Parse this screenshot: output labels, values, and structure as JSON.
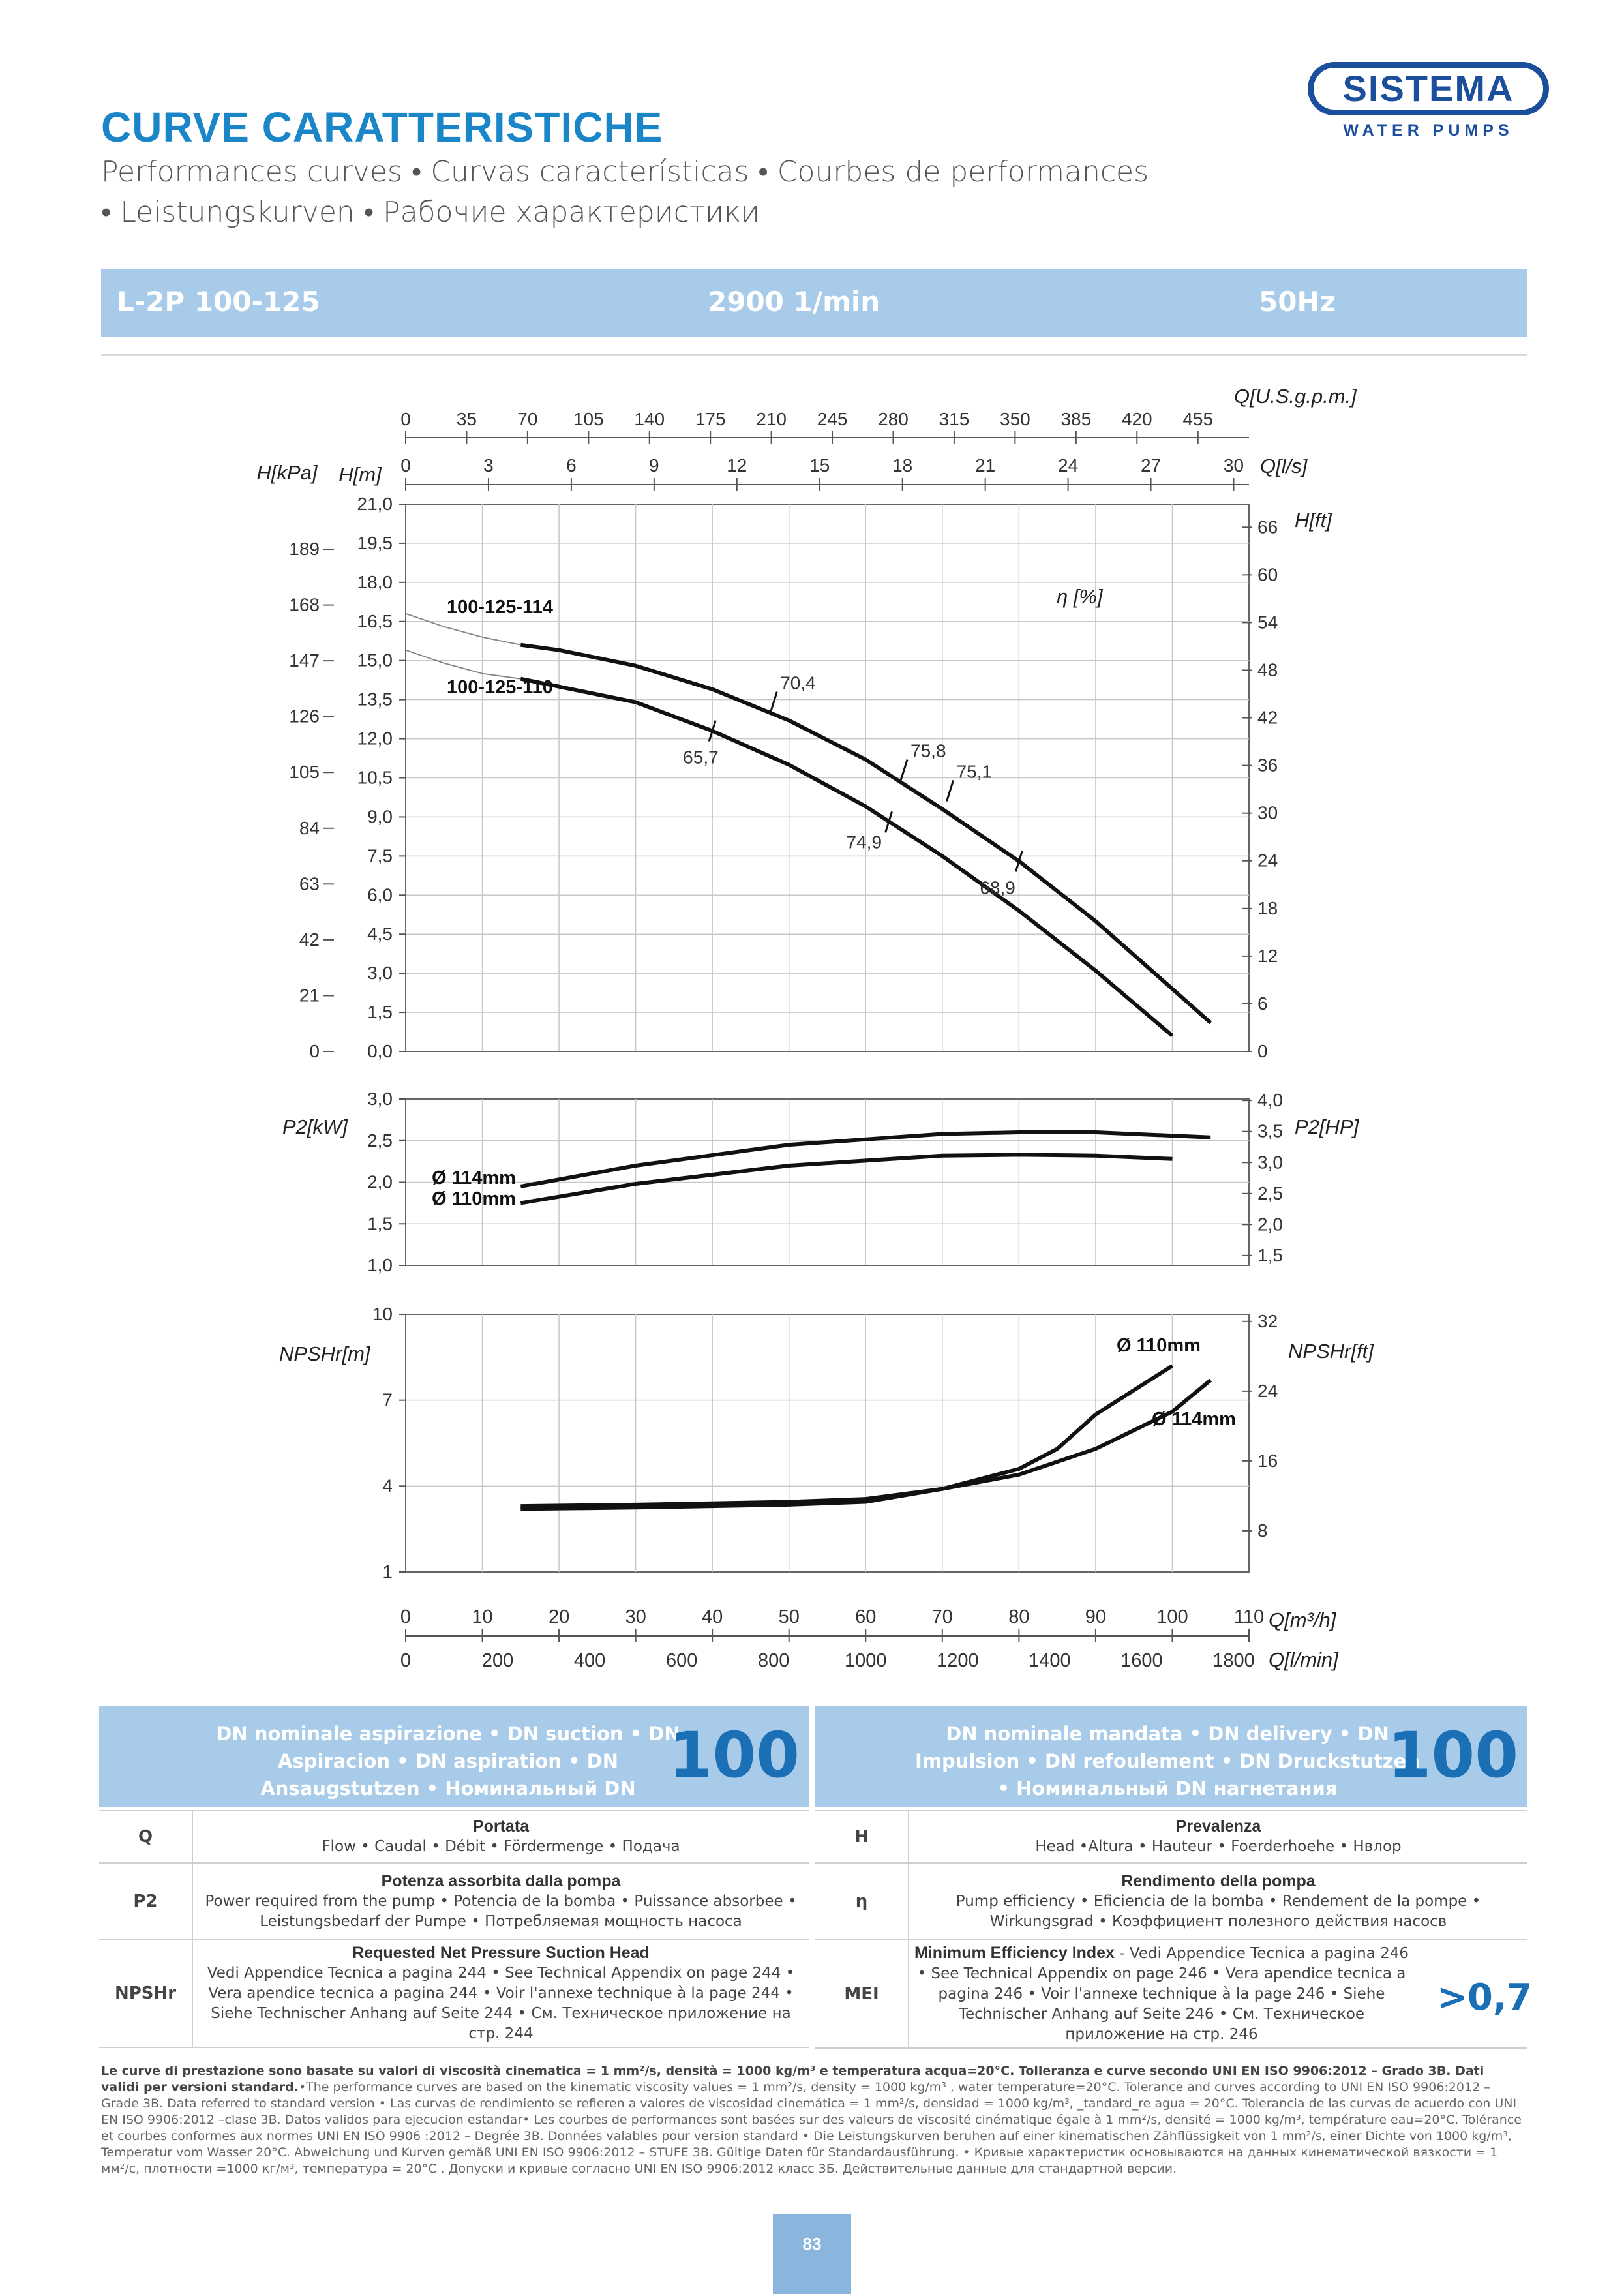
{
  "header": {
    "title": "CURVE CARATTERISTICHE",
    "subtitle_line1": "Performances curves • Curvas características • Courbes de performances",
    "subtitle_line2": "• Leistungskurven • Рабочие характеристики",
    "logo_text": "SISTEMA",
    "logo_sub": "WATER PUMPS"
  },
  "band": {
    "model": "L-2P 100-125",
    "speed": "2900 1/min",
    "frequency": "50Hz"
  },
  "chart_data": [
    {
      "type": "line",
      "title": "",
      "top_axis_labels": {
        "usgpm": "Q[U.S.g.p.m.]",
        "ls": "Q[l/s]"
      },
      "usgpm_ticks": [
        "0",
        "35",
        "70",
        "105",
        "140",
        "175",
        "210",
        "245",
        "280",
        "315",
        "350",
        "385",
        "420",
        "455"
      ],
      "ls_ticks": [
        "0",
        "3",
        "6",
        "9",
        "12",
        "15",
        "18",
        "21",
        "24",
        "27",
        "30"
      ],
      "ylabel_left_kpa": "H[kPa]",
      "ylabel_left_m": "H[m]",
      "ylabel_right": "H[ft]",
      "kpa_ticks": [
        "0",
        "21",
        "42",
        "63",
        "84",
        "105",
        "126",
        "147",
        "168",
        "189"
      ],
      "m_ticks": [
        "0,0",
        "1,5",
        "3,0",
        "4,5",
        "6,0",
        "7,5",
        "9,0",
        "10,5",
        "12,0",
        "13,5",
        "15,0",
        "16,5",
        "18,0",
        "19,5",
        "21,0"
      ],
      "ft_ticks": [
        "0",
        "6",
        "12",
        "18",
        "24",
        "30",
        "36",
        "42",
        "48",
        "54",
        "60",
        "66"
      ],
      "eta_label": "η [%]",
      "ylim": [
        0,
        21
      ],
      "xlim": [
        0,
        110
      ],
      "series": [
        {
          "name": "100-125-114",
          "x": [
            0,
            5,
            10,
            15,
            20,
            30,
            40,
            50,
            60,
            70,
            80,
            90,
            100,
            105
          ],
          "y": [
            16.8,
            16.3,
            15.9,
            15.6,
            15.4,
            14.8,
            13.9,
            12.7,
            11.2,
            9.3,
            7.3,
            5.0,
            2.4,
            1.1
          ],
          "solid_from_x": 15
        },
        {
          "name": "100-125-110",
          "x": [
            0,
            5,
            10,
            15,
            20,
            30,
            40,
            50,
            60,
            70,
            80,
            90,
            100
          ],
          "y": [
            15.4,
            14.9,
            14.5,
            14.3,
            14.0,
            13.4,
            12.3,
            11.0,
            9.4,
            7.5,
            5.4,
            3.1,
            0.6
          ],
          "solid_from_x": 15
        }
      ],
      "efficiency_marks": [
        {
          "label": "65,7",
          "x": 40,
          "y": 12.3
        },
        {
          "label": "70,4",
          "x": 48,
          "y": 13.4
        },
        {
          "label": "74,9",
          "x": 63,
          "y": 8.8
        },
        {
          "label": "75,8",
          "x": 65,
          "y": 10.8
        },
        {
          "label": "75,1",
          "x": 71,
          "y": 10.0
        },
        {
          "label": "68,9",
          "x": 80,
          "y": 7.3
        }
      ]
    },
    {
      "type": "line",
      "ylabel_left": "P2[kW]",
      "ylabel_right": "P2[HP]",
      "kw_ticks": [
        "1,0",
        "1,5",
        "2,0",
        "2,5",
        "3,0"
      ],
      "hp_ticks": [
        "1,5",
        "2,0",
        "2,5",
        "3,0",
        "3,5",
        "4,0"
      ],
      "ylim": [
        1.0,
        3.0
      ],
      "series": [
        {
          "name": "Ø 114mm",
          "x": [
            15,
            30,
            50,
            70,
            80,
            90,
            105
          ],
          "y": [
            1.95,
            2.2,
            2.45,
            2.58,
            2.6,
            2.6,
            2.54
          ]
        },
        {
          "name": "Ø 110mm",
          "x": [
            15,
            30,
            50,
            70,
            80,
            90,
            100
          ],
          "y": [
            1.75,
            1.98,
            2.2,
            2.32,
            2.33,
            2.32,
            2.28
          ]
        }
      ]
    },
    {
      "type": "line",
      "ylabel_left": "NPSHr[m]",
      "ylabel_right": "NPSHr[ft]",
      "m_ticks": [
        "1",
        "4",
        "7",
        "10"
      ],
      "ft_ticks": [
        "8",
        "16",
        "24",
        "32"
      ],
      "ylim": [
        1,
        10
      ],
      "series": [
        {
          "name": "Ø 110mm",
          "x": [
            15,
            30,
            50,
            60,
            70,
            80,
            85,
            90,
            100
          ],
          "y": [
            3.3,
            3.35,
            3.45,
            3.55,
            3.9,
            4.6,
            5.3,
            6.5,
            8.2
          ]
        },
        {
          "name": "Ø 114mm",
          "x": [
            15,
            30,
            50,
            60,
            70,
            80,
            90,
            100,
            105
          ],
          "y": [
            3.2,
            3.25,
            3.35,
            3.45,
            3.9,
            4.4,
            5.3,
            6.6,
            7.7
          ]
        }
      ],
      "bottom_axis_labels": {
        "m3h": "Q[m³/h]",
        "lmin": "Q[l/min]"
      },
      "m3h_ticks": [
        "0",
        "10",
        "20",
        "30",
        "40",
        "50",
        "60",
        "70",
        "80",
        "90",
        "100",
        "110"
      ],
      "lmin_ticks": [
        "0",
        "200",
        "400",
        "600",
        "800",
        "1000",
        "1200",
        "1400",
        "1600",
        "1800"
      ]
    }
  ],
  "dn": {
    "suction_text": "DN nominale aspirazione • DN suction • DN Aspiracion • DN aspiration • DN Ansaugstutzen • Номинальный DN всасывания",
    "suction_value": "100",
    "delivery_text": "DN nominale mandata • DN delivery • DN Impulsion • DN refoulement • DN Druckstutzen • Номинальный DN нагнетания",
    "delivery_value": "100"
  },
  "legend": {
    "q_key": "Q",
    "q_title": "Portata",
    "q_desc": "Flow • Caudal • Débit • Fördermenge • Подача",
    "h_key": "H",
    "h_title": "Prevalenza",
    "h_desc": "Head •Altura • Hauteur • Foerderhoehe • Нвлор",
    "p2_key": "P2",
    "p2_title": "Potenza assorbita dalla pompa",
    "p2_desc": "Power required from the pump • Potencia de la bomba • Puissance absorbee • Leistungsbedarf der Pumpe • Потребляемая мощность насоса",
    "eta_key": "η",
    "eta_title": "Rendimento della pompa",
    "eta_desc": "Pump efficiency • Eficiencia de la bomba • Rendement de la pompe • Wirkungsgrad • Коэффициент полезного действия насосв",
    "npshr_key": "NPSHr",
    "npshr_title": "Requested Net Pressure Suction Head",
    "npshr_desc": "Vedi Appendice Tecnica a pagina 244 • See Technical Appendix on page 244 • Vera apendice tecnica a pagina 244 • Voir l'annexe technique à la page 244 • Siehe Technischer Anhang auf Seite 244 • См. Техническое приложение на стр. 244",
    "mei_key": "MEI",
    "mei_title": "Minimum Efficiency Index",
    "mei_desc": " - Vedi Appendice Tecnica a pagina 246 • See Technical Appendix on page 246 • Vera apendice tecnica a pagina 246 • Voir l'annexe technique à la page 246 • Siehe Technischer Anhang auf Seite 246 • См. Техническое приложение на стр. 246",
    "mei_value": ">0,7"
  },
  "footnote": {
    "bold": "Le curve di prestazione sono basate su valori di viscosità cinematica = 1 mm²/s, densità = 1000 kg/m³ e temperatura acqua=20°C. Tolleranza e curve secondo UNI EN ISO 9906:2012 – Grado 3B. Dati validi per versioni standard.",
    "text": "•The performance curves are based on the kinematic viscosity values = 1 mm²/s, density = 1000 kg/m³ , water temperature=20°C. Tolerance and curves according to UNI EN ISO 9906:2012 – Grade 3B. Data referred to standard version • Las curvas de rendimiento se refieren a valores de viscosidad cinemática = 1 mm²/s, densidad = 1000 kg/m³, _tandard_re agua = 20°C. Tolerancia de las curvas de acuerdo con UNI EN ISO 9906:2012 –clase 3B. Datos validos para ejecucion estandar• Les courbes de performances sont basées sur des valeurs de viscosité cinématique égale à 1 mm²/s, densité = 1000 kg/m³, température eau=20°C. Tolérance et courbes conformes aux normes UNI EN ISO 9906 :2012 – Degrée 3B. Données valables pour version standard • Die Leistungskurven beruhen auf einer kinematischen Zähflüssigkeit von 1 mm²/s, einer Dichte von 1000 kg/m³, Temperatur vom Wasser 20°C. Abweichung und Kurven gemäß UNI EN ISO 9906:2012 – STUFE 3B. Gültige Daten für Standardausführung. • Кривые характеристик основываются на данных кинематической вязкости = 1 мм²/с, плотности =1000 кг/м³, температура = 20°C . Допуски и кривые согласно UNI EN ISO 9906:2012 класс 3Б. Действительные данные для стандартной версии."
  },
  "page_number": "83"
}
